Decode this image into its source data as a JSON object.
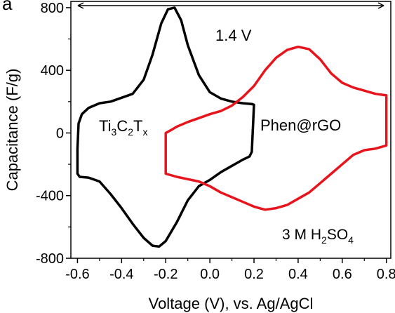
{
  "panel_label": "a",
  "chart_data": {
    "type": "line",
    "xlabel": "Voltage (V), vs. Ag/AgCl",
    "ylabel": "Capacitance (F/g)",
    "xlim": [
      -0.63,
      0.82
    ],
    "ylim": [
      -800,
      840
    ],
    "xticks": [
      -0.6,
      -0.4,
      -0.2,
      0.0,
      0.2,
      0.4,
      0.6,
      0.8
    ],
    "xtick_labels": [
      "-0.6",
      "-0.4",
      "-0.2",
      "0.0",
      "0.2",
      "0.4",
      "0.6",
      "0.8"
    ],
    "yticks": [
      -800,
      -400,
      0,
      400,
      800
    ],
    "ytick_labels": [
      "-800",
      "-400",
      "0",
      "400",
      "800"
    ],
    "grid": false,
    "legend": "none",
    "series": [
      {
        "name": "Ti3C2Tx",
        "color": "#000000",
        "points": [
          [
            -0.6,
            -260
          ],
          [
            -0.59,
            -280
          ],
          [
            -0.55,
            -285
          ],
          [
            -0.5,
            -310
          ],
          [
            -0.45,
            -390
          ],
          [
            -0.4,
            -480
          ],
          [
            -0.35,
            -580
          ],
          [
            -0.3,
            -670
          ],
          [
            -0.26,
            -720
          ],
          [
            -0.23,
            -725
          ],
          [
            -0.2,
            -690
          ],
          [
            -0.15,
            -570
          ],
          [
            -0.1,
            -430
          ],
          [
            -0.05,
            -340
          ],
          [
            0.0,
            -300
          ],
          [
            0.05,
            -250
          ],
          [
            0.1,
            -210
          ],
          [
            0.15,
            -170
          ],
          [
            0.18,
            -150
          ],
          [
            0.19,
            -120
          ],
          [
            0.2,
            180
          ],
          [
            0.19,
            185
          ],
          [
            0.15,
            190
          ],
          [
            0.1,
            200
          ],
          [
            0.05,
            220
          ],
          [
            0.0,
            260
          ],
          [
            -0.05,
            370
          ],
          [
            -0.1,
            560
          ],
          [
            -0.13,
            720
          ],
          [
            -0.16,
            800
          ],
          [
            -0.19,
            790
          ],
          [
            -0.22,
            700
          ],
          [
            -0.26,
            500
          ],
          [
            -0.3,
            340
          ],
          [
            -0.35,
            250
          ],
          [
            -0.4,
            225
          ],
          [
            -0.45,
            200
          ],
          [
            -0.5,
            190
          ],
          [
            -0.55,
            160
          ],
          [
            -0.58,
            120
          ],
          [
            -0.595,
            60
          ],
          [
            -0.6,
            -100
          ],
          [
            -0.6,
            -260
          ]
        ]
      },
      {
        "name": "Phen@rGO",
        "color": "#e8141c",
        "points": [
          [
            -0.2,
            0
          ],
          [
            -0.18,
            15
          ],
          [
            -0.15,
            40
          ],
          [
            -0.1,
            70
          ],
          [
            -0.05,
            95
          ],
          [
            0.0,
            120
          ],
          [
            0.05,
            140
          ],
          [
            0.1,
            175
          ],
          [
            0.15,
            230
          ],
          [
            0.2,
            300
          ],
          [
            0.25,
            400
          ],
          [
            0.3,
            480
          ],
          [
            0.35,
            530
          ],
          [
            0.4,
            550
          ],
          [
            0.45,
            535
          ],
          [
            0.5,
            470
          ],
          [
            0.55,
            380
          ],
          [
            0.6,
            320
          ],
          [
            0.65,
            290
          ],
          [
            0.7,
            270
          ],
          [
            0.75,
            250
          ],
          [
            0.8,
            240
          ],
          [
            0.8,
            -80
          ],
          [
            0.75,
            -100
          ],
          [
            0.7,
            -110
          ],
          [
            0.65,
            -140
          ],
          [
            0.6,
            -200
          ],
          [
            0.55,
            -260
          ],
          [
            0.5,
            -320
          ],
          [
            0.45,
            -380
          ],
          [
            0.4,
            -420
          ],
          [
            0.35,
            -460
          ],
          [
            0.3,
            -480
          ],
          [
            0.25,
            -490
          ],
          [
            0.2,
            -470
          ],
          [
            0.15,
            -440
          ],
          [
            0.1,
            -410
          ],
          [
            0.05,
            -380
          ],
          [
            0.0,
            -340
          ],
          [
            -0.05,
            -310
          ],
          [
            -0.1,
            -295
          ],
          [
            -0.15,
            -280
          ],
          [
            -0.2,
            -260
          ],
          [
            -0.2,
            0
          ]
        ]
      }
    ],
    "annotations": {
      "window": "1.4 V",
      "ti3c2tx": {
        "parts": [
          "Ti",
          "3",
          "C",
          "2",
          "T",
          "x"
        ]
      },
      "phen": "Phen@rGO",
      "electrolyte": {
        "parts": [
          "3 M H",
          "2",
          "SO",
          "4"
        ]
      }
    }
  }
}
